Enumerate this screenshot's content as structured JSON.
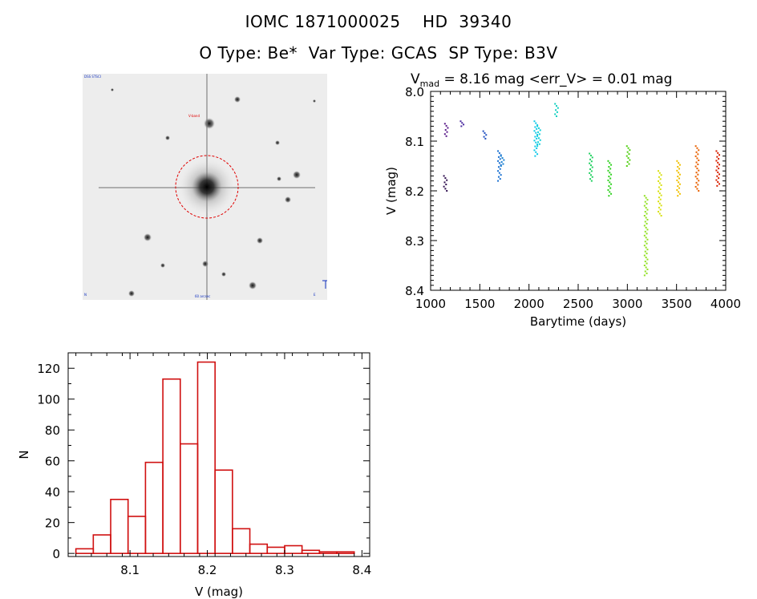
{
  "header": {
    "line1": "IOMC 1871000025    HD  39340",
    "line2": "O Type: Be*  Var Type: GCAS  SP Type: B3V"
  },
  "sky_image": {
    "top_left_label": "DSS STSCI",
    "target_label": "V-band",
    "bottom_left_label": "N",
    "bottom_center_label": "60 arcsec",
    "bottom_right_label": "E"
  },
  "light_curve": {
    "title_prefix": "V",
    "title_subscript": "mad",
    "title_rest": " = 8.16 mag <err_V> = 0.01 mag",
    "xlabel": "Barytime (days)",
    "ylabel": "V (mag)",
    "xlim": [
      1000,
      4000
    ],
    "ylim": [
      8.0,
      8.4
    ],
    "y_inverted": true,
    "x_ticks": [
      "1000",
      "1500",
      "2000",
      "2500",
      "3000",
      "3500",
      "4000"
    ],
    "y_ticks": [
      "8.0",
      "8.1",
      "8.2",
      "8.3",
      "8.4"
    ],
    "color_scale": "rainbow by time (purple to red)"
  },
  "chart_data": [
    {
      "type": "scatter",
      "title": "Vmad = 8.16 mag <err_V> = 0.01 mag",
      "xlabel": "Barytime (days)",
      "ylabel": "V (mag)",
      "xlim": [
        1000,
        4000
      ],
      "ylim": [
        8.4,
        8.0
      ],
      "grid": false,
      "groups": [
        {
          "x": 1150,
          "ymin": 8.17,
          "ymax": 8.2,
          "color": "#301050"
        },
        {
          "x": 1160,
          "ymin": 8.065,
          "ymax": 8.09,
          "color": "#5a1a8a"
        },
        {
          "x": 1320,
          "ymin": 8.06,
          "ymax": 8.07,
          "color": "#4a2aa0"
        },
        {
          "x": 1550,
          "ymin": 8.08,
          "ymax": 8.095,
          "color": "#2050c0"
        },
        {
          "x": 1700,
          "ymin": 8.12,
          "ymax": 8.18,
          "color": "#1a70d0"
        },
        {
          "x": 1730,
          "ymin": 8.13,
          "ymax": 8.15,
          "color": "#1a80d0"
        },
        {
          "x": 2070,
          "ymin": 8.06,
          "ymax": 8.13,
          "color": "#10c8e8"
        },
        {
          "x": 2100,
          "ymin": 8.07,
          "ymax": 8.11,
          "color": "#10d0d8"
        },
        {
          "x": 2280,
          "ymin": 8.025,
          "ymax": 8.05,
          "color": "#10d0c0"
        },
        {
          "x": 2630,
          "ymin": 8.125,
          "ymax": 8.18,
          "color": "#20d060"
        },
        {
          "x": 2820,
          "ymin": 8.14,
          "ymax": 8.21,
          "color": "#30d020"
        },
        {
          "x": 3010,
          "ymin": 8.11,
          "ymax": 8.15,
          "color": "#50d010"
        },
        {
          "x": 3190,
          "ymin": 8.21,
          "ymax": 8.37,
          "color": "#90e020"
        },
        {
          "x": 3330,
          "ymin": 8.16,
          "ymax": 8.25,
          "color": "#d8e010"
        },
        {
          "x": 3520,
          "ymin": 8.14,
          "ymax": 8.21,
          "color": "#f0c000"
        },
        {
          "x": 3710,
          "ymin": 8.11,
          "ymax": 8.2,
          "color": "#e86000"
        },
        {
          "x": 3920,
          "ymin": 8.12,
          "ymax": 8.19,
          "color": "#d82000"
        }
      ]
    },
    {
      "type": "bar",
      "style": "histogram",
      "xlabel": "V (mag)",
      "ylabel": "N",
      "xlim": [
        8.02,
        8.41
      ],
      "ylim": [
        -2,
        130
      ],
      "x_ticks": [
        "8.1",
        "8.2",
        "8.3",
        "8.4"
      ],
      "y_ticks": [
        "0",
        "20",
        "40",
        "60",
        "80",
        "100",
        "120"
      ],
      "bar_color": "#d01010",
      "bin_width": 0.0225,
      "bin_starts": [
        8.03,
        8.0525,
        8.075,
        8.0975,
        8.12,
        8.1425,
        8.165,
        8.1875,
        8.21,
        8.2325,
        8.255,
        8.2775,
        8.3,
        8.3225,
        8.345,
        8.3675
      ],
      "values": [
        3,
        12,
        35,
        24,
        59,
        113,
        71,
        124,
        54,
        16,
        6,
        4,
        5,
        2,
        1,
        1
      ]
    }
  ]
}
